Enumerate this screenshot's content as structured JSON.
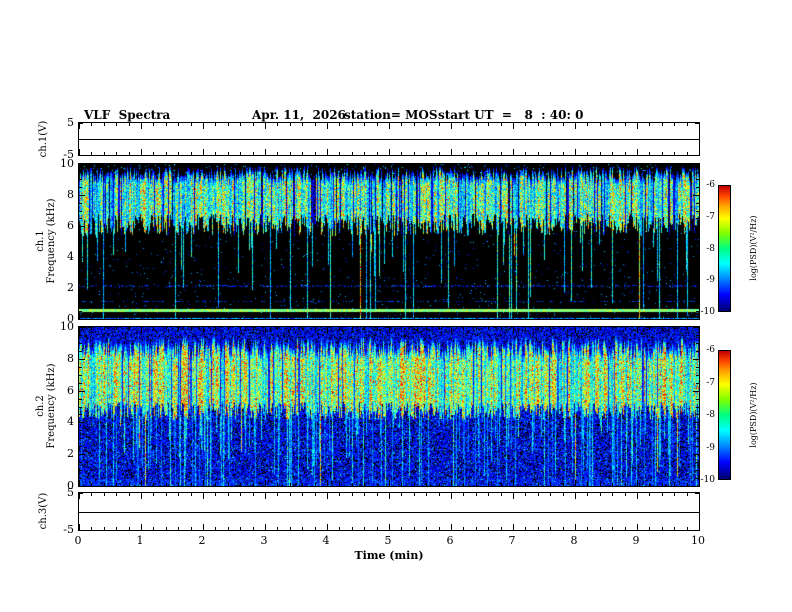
{
  "header": {
    "title": "VLF  Spectra",
    "date": "Apr. 11,  2026",
    "station": "station= MOS",
    "start_ut": "start UT  =   8  : 40: 0"
  },
  "axes": {
    "xlabel": "Time  (min)",
    "x_ticks": [
      0,
      1,
      2,
      3,
      4,
      5,
      6,
      7,
      8,
      9,
      10
    ],
    "x_range_min": [
      0,
      10
    ]
  },
  "chart_data": [
    {
      "type": "line",
      "name": "ch1-voltage-waveform",
      "ylabel": "ch.1(V)",
      "ylim": [
        -5,
        5
      ],
      "y_tick_labels": [
        5,
        -5
      ],
      "x": [
        0,
        10
      ],
      "values": [
        0,
        0
      ],
      "description": "flat trace near 0 V for full 10 minutes"
    },
    {
      "type": "heatmap",
      "name": "ch1-spectrogram",
      "ylabel_lines": [
        "ch.1",
        "Frequency (kHz)"
      ],
      "ylim": [
        0,
        10
      ],
      "y_ticks": [
        0,
        2,
        4,
        6,
        8,
        10
      ],
      "x_range_min": [
        0,
        10
      ],
      "colorbar": {
        "label": "log(PSD)(V²/Hz)",
        "ticks": [
          -6,
          -7,
          -8,
          -9,
          -10
        ],
        "range": [
          -10,
          -6
        ],
        "colormap": "jet"
      },
      "content": {
        "background_level_log": -10,
        "main_band_khz": [
          6.0,
          9.5
        ],
        "main_band_level_log": [
          -8.2,
          -7.0
        ],
        "impulsive_streaks": "frequent vertical sferic streaks from band down to 0 kHz, mostly green/cyan, occasional red",
        "horizontal_line_khz": 0.6,
        "interference_lines_khz": [
          1.15,
          2.15
        ],
        "seed": 20260411
      }
    },
    {
      "type": "heatmap",
      "name": "ch2-spectrogram",
      "ylabel_lines": [
        "ch.2",
        "Frequency (kHz)"
      ],
      "ylim": [
        0,
        10
      ],
      "y_ticks": [
        0,
        2,
        4,
        6,
        8,
        10
      ],
      "x_range_min": [
        0,
        10
      ],
      "colorbar": {
        "label": "log(PSD)(V²/Hz)",
        "ticks": [
          -6,
          -7,
          -8,
          -9,
          -10
        ],
        "range": [
          -10,
          -6
        ],
        "colormap": "jet"
      },
      "content": {
        "background_level_log": -9.5,
        "background": "dense blue speckle noise at all frequencies",
        "main_band_khz": [
          4.8,
          9.2
        ],
        "main_band_level_log": [
          -7.5,
          -6.3
        ],
        "impulsive_streaks": "very frequent vertical streaks extending to 0 kHz, cyan/green with occasional orange-red",
        "seed": 8404
      }
    },
    {
      "type": "line",
      "name": "ch3-voltage-waveform",
      "ylabel": "ch.3(V)",
      "ylim": [
        -5,
        5
      ],
      "y_tick_labels": [
        5,
        -5
      ],
      "x": [
        0,
        10
      ],
      "values": [
        0,
        0
      ],
      "description": "flat trace near 0 V for full 10 minutes"
    }
  ]
}
